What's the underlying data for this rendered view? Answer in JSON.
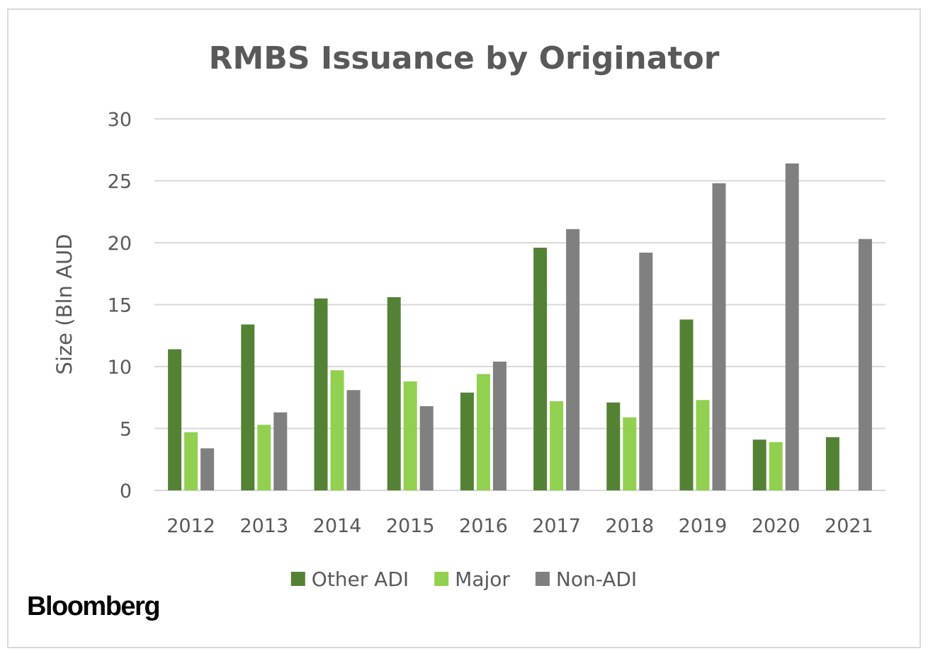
{
  "chart_data": {
    "type": "bar",
    "title": "RMBS Issuance by Originator",
    "xlabel": "",
    "ylabel": "Size (Bln AUD",
    "ylim": [
      0,
      30
    ],
    "yticks": [
      "0",
      "5",
      "10",
      "15",
      "20",
      "25",
      "30"
    ],
    "categories": [
      "2012",
      "2013",
      "2014",
      "2015",
      "2016",
      "2017",
      "2018",
      "2019",
      "2020",
      "2021"
    ],
    "series": [
      {
        "name": "Other ADI",
        "color": "#548235",
        "values": [
          11.4,
          13.4,
          15.5,
          15.6,
          7.9,
          19.6,
          7.1,
          13.8,
          4.1,
          4.3
        ]
      },
      {
        "name": "Major",
        "color": "#92d050",
        "values": [
          4.7,
          5.3,
          9.7,
          8.8,
          9.4,
          7.2,
          5.9,
          7.3,
          3.9,
          0
        ]
      },
      {
        "name": "Non-ADI",
        "color": "#808080",
        "values": [
          3.4,
          6.3,
          8.1,
          6.8,
          10.4,
          21.1,
          19.2,
          24.8,
          26.4,
          20.3
        ]
      }
    ],
    "grid": true,
    "gridline_color": "#d9d9d9",
    "legend_placement": "bottom"
  },
  "source_logo": "Bloomberg"
}
